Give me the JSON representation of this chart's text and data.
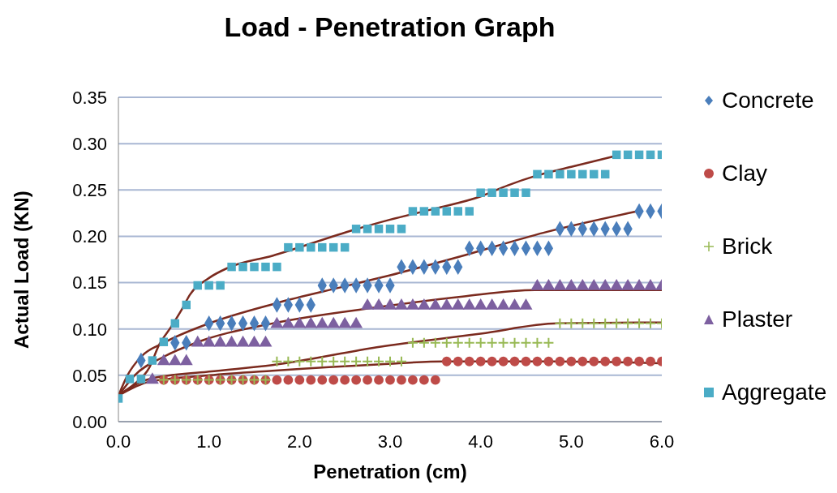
{
  "chart_data": {
    "type": "scatter",
    "title": "Load - Penetration Graph",
    "xlabel": "Penetration (cm)",
    "ylabel": "Actual Load (KN)",
    "x": [
      0,
      0.125,
      0.25,
      0.375,
      0.5,
      0.625,
      0.75,
      0.875,
      1,
      1.125,
      1.25,
      1.375,
      1.5,
      1.625,
      1.75,
      1.875,
      2,
      2.125,
      2.25,
      2.375,
      2.5,
      2.625,
      2.75,
      2.875,
      3,
      3.125,
      3.25,
      3.375,
      3.5,
      3.625,
      3.75,
      3.875,
      4,
      4.125,
      4.25,
      4.375,
      4.5,
      4.625,
      4.75,
      4.875,
      5,
      5.125,
      5.25,
      5.375,
      5.5,
      5.625,
      5.75,
      5.875,
      6
    ],
    "xlim": [
      0,
      6
    ],
    "xticks": [
      {
        "value": 0,
        "label": "0.0"
      },
      {
        "value": 1,
        "label": "1.0"
      },
      {
        "value": 2,
        "label": "2.0"
      },
      {
        "value": 3,
        "label": "3.0"
      },
      {
        "value": 4,
        "label": "4.0"
      },
      {
        "value": 5,
        "label": "5.0"
      },
      {
        "value": 6,
        "label": "6.0"
      }
    ],
    "ylim": [
      0,
      0.35
    ],
    "yticks": [
      {
        "value": 0,
        "label": "0.00"
      },
      0.05,
      {
        "value": 0.1,
        "label": "0.10"
      },
      0.15,
      {
        "value": 0.2,
        "label": "0.20"
      },
      0.25,
      {
        "value": 0.3,
        "label": "0.30"
      },
      0.35
    ],
    "grid": "y",
    "legend": "right",
    "series": [
      {
        "name": "Concrete",
        "color": "#4a7ebb",
        "marker": "diamond",
        "values": [
          null,
          null,
          0.066,
          null,
          null,
          0.085,
          0.085,
          null,
          0.106,
          0.106,
          0.106,
          0.106,
          0.106,
          0.106,
          0.126,
          0.126,
          0.126,
          0.126,
          0.147,
          0.147,
          0.147,
          0.147,
          0.147,
          0.147,
          0.147,
          0.167,
          0.167,
          0.167,
          0.167,
          0.167,
          0.167,
          0.187,
          0.187,
          0.187,
          0.187,
          0.187,
          0.187,
          0.187,
          0.187,
          0.208,
          0.208,
          0.208,
          0.208,
          0.208,
          0.208,
          0.208,
          0.227,
          0.227,
          0.227
        ]
      },
      {
        "name": "Clay",
        "color": "#be4b48",
        "marker": "circle",
        "values": [
          null,
          null,
          null,
          null,
          0.045,
          0.045,
          0.045,
          0.045,
          0.045,
          0.045,
          0.045,
          0.045,
          0.045,
          0.045,
          0.045,
          0.045,
          0.045,
          0.045,
          0.045,
          0.045,
          0.045,
          0.045,
          0.045,
          0.045,
          0.045,
          0.045,
          0.045,
          0.045,
          0.045,
          0.065,
          0.065,
          0.065,
          0.065,
          0.065,
          0.065,
          0.065,
          0.065,
          0.065,
          0.065,
          0.065,
          0.065,
          0.065,
          0.065,
          0.065,
          0.065,
          0.065,
          0.065,
          0.065,
          0.065
        ]
      },
      {
        "name": "Brick",
        "color": "#98b954",
        "marker": "cross",
        "values": [
          null,
          null,
          null,
          null,
          0.045,
          0.045,
          0.045,
          0.045,
          0.045,
          0.045,
          0.045,
          0.045,
          0.045,
          0.045,
          0.065,
          0.065,
          0.065,
          0.065,
          0.065,
          0.065,
          0.065,
          0.065,
          0.065,
          0.065,
          0.065,
          0.065,
          0.085,
          0.085,
          0.085,
          0.085,
          0.085,
          0.085,
          0.085,
          0.085,
          0.085,
          0.085,
          0.085,
          0.085,
          0.085,
          0.106,
          0.106,
          0.106,
          0.106,
          0.106,
          0.106,
          0.106,
          0.106,
          0.106,
          0.106
        ]
      },
      {
        "name": "Plaster",
        "color": "#7d60a0",
        "marker": "triangle",
        "values": [
          null,
          null,
          null,
          0.045,
          0.065,
          0.065,
          0.065,
          0.085,
          0.085,
          0.085,
          0.085,
          0.085,
          0.085,
          0.085,
          0.105,
          0.105,
          0.105,
          0.105,
          0.105,
          0.105,
          0.105,
          0.105,
          0.125,
          0.125,
          0.125,
          0.125,
          0.125,
          0.125,
          0.125,
          0.125,
          0.125,
          0.125,
          0.125,
          0.125,
          0.125,
          0.125,
          0.125,
          0.146,
          0.146,
          0.146,
          0.146,
          0.146,
          0.146,
          0.146,
          0.146,
          0.146,
          0.146,
          0.146,
          0.146
        ]
      },
      {
        "name": "Aggregate",
        "color": "#4bacc6",
        "marker": "square",
        "values": [
          0.025,
          0.046,
          0.046,
          0.066,
          0.086,
          0.106,
          0.126,
          0.147,
          0.147,
          0.147,
          0.167,
          0.167,
          0.167,
          0.167,
          0.167,
          0.188,
          0.188,
          0.188,
          0.188,
          0.188,
          0.188,
          0.208,
          0.208,
          0.208,
          0.208,
          0.208,
          0.227,
          0.227,
          0.227,
          0.227,
          0.227,
          0.227,
          0.247,
          0.247,
          0.247,
          0.247,
          0.247,
          0.267,
          0.267,
          0.267,
          0.267,
          0.267,
          0.267,
          0.267,
          0.288,
          0.288,
          0.288,
          0.288,
          0.288
        ]
      },
      {
        "type": "line",
        "color": "#7b2a1e",
        "marker": "none",
        "x": [
          0,
          0.1,
          0.25,
          0.5,
          1,
          1.75,
          2.5,
          3,
          3.8,
          4.7,
          5.73
        ],
        "values": [
          0.028,
          0.05,
          0.07,
          0.085,
          0.106,
          0.128,
          0.146,
          0.158,
          0.179,
          0.204,
          0.227
        ]
      },
      {
        "type": "line",
        "color": "#7b2a1e",
        "marker": "none",
        "x": [
          0,
          0.34,
          1,
          1.7,
          2.9,
          3.6,
          4.8,
          6
        ],
        "values": [
          0.028,
          0.043,
          0.05,
          0.055,
          0.062,
          0.065,
          0.065,
          0.063
        ]
      },
      {
        "type": "line",
        "color": "#7b2a1e",
        "marker": "none",
        "x": [
          0,
          0.34,
          1,
          1.7,
          2.9,
          4,
          4.85,
          6
        ],
        "values": [
          0.028,
          0.046,
          0.054,
          0.061,
          0.081,
          0.095,
          0.106,
          0.107
        ]
      },
      {
        "type": "line",
        "color": "#7b2a1e",
        "marker": "none",
        "x": [
          0,
          0.18,
          0.5,
          0.88,
          1.7,
          2.9,
          3.8,
          4.6,
          6
        ],
        "values": [
          0.028,
          0.05,
          0.07,
          0.086,
          0.106,
          0.124,
          0.135,
          0.142,
          0.142
        ]
      },
      {
        "type": "line",
        "color": "#7b2a1e",
        "marker": "none",
        "x": [
          0,
          0.18,
          0.34,
          0.45,
          0.58,
          0.7,
          0.79,
          1,
          1.21,
          1.7,
          2.6,
          3,
          3.5,
          4,
          4.3,
          4.6,
          5,
          5.5
        ],
        "values": [
          0.029,
          0.041,
          0.058,
          0.083,
          0.102,
          0.121,
          0.137,
          0.155,
          0.166,
          0.179,
          0.207,
          0.218,
          0.23,
          0.243,
          0.255,
          0.265,
          0.275,
          0.287
        ]
      }
    ]
  }
}
